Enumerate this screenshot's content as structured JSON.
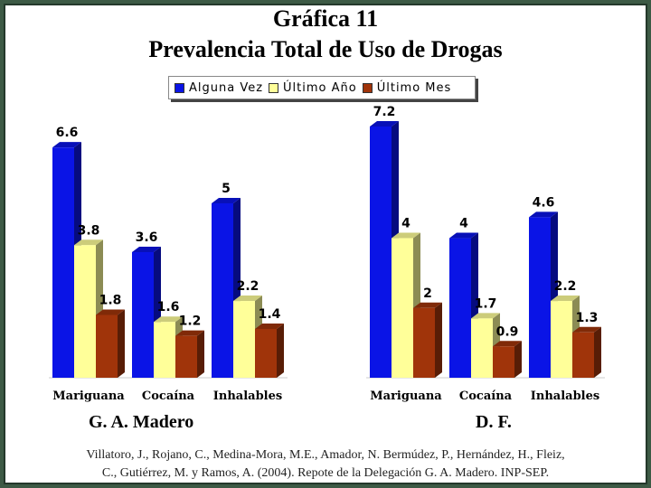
{
  "title": "Gráfica 11",
  "subtitle": "Prevalencia Total de Uso de Drogas",
  "caption_line1": "Villatoro, J., Rojano, C., Medina-Mora, M.E., Amador, N. Bermúdez, P., Hernández, H., Fleiz,",
  "caption_line2": "C., Gutiérrez, M. y Ramos, A. (2004). Repote de la Delegación G. A. Madero. INP-SEP.",
  "colors": {
    "alguna_vez": "#0a14e6",
    "ultimo_ano": "#ffff99",
    "ultimo_mes": "#a0340a",
    "background": "#3d5a45"
  },
  "chart_data": {
    "type": "bar",
    "legend_position": "top",
    "ylim": [
      0,
      7.2
    ],
    "series_names": [
      "Alguna Vez",
      "Último Año",
      "Último Mes"
    ],
    "groups": [
      {
        "name": "G. A. Madero",
        "categories": [
          "Mariguana",
          "Cocaína",
          "Inhalables"
        ],
        "series": [
          {
            "name": "Alguna Vez",
            "values": [
              6.6,
              3.6,
              5
            ]
          },
          {
            "name": "Último Año",
            "values": [
              3.8,
              1.6,
              2.2
            ]
          },
          {
            "name": "Último Mes",
            "values": [
              1.8,
              1.2,
              1.4
            ]
          }
        ]
      },
      {
        "name": "D. F.",
        "categories": [
          "Mariguana",
          "Cocaína",
          "Inhalables"
        ],
        "series": [
          {
            "name": "Alguna Vez",
            "values": [
              7.2,
              4,
              4.6
            ]
          },
          {
            "name": "Último Año",
            "values": [
              4,
              1.7,
              2.2
            ]
          },
          {
            "name": "Último Mes",
            "values": [
              2,
              0.9,
              1.3
            ]
          }
        ]
      }
    ]
  }
}
